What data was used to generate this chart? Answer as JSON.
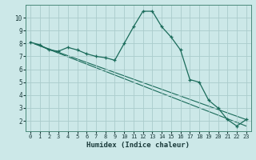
{
  "xlabel": "Humidex (Indice chaleur)",
  "background_color": "#cce8e8",
  "grid_color": "#aacccc",
  "line_color": "#1a6b5a",
  "xlim": [
    -0.5,
    23.5
  ],
  "ylim": [
    1.2,
    11.0
  ],
  "xticks": [
    0,
    1,
    2,
    3,
    4,
    5,
    6,
    7,
    8,
    9,
    10,
    11,
    12,
    13,
    14,
    15,
    16,
    17,
    18,
    19,
    20,
    21,
    22,
    23
  ],
  "yticks": [
    2,
    3,
    4,
    5,
    6,
    7,
    8,
    9,
    10
  ],
  "line1_x": [
    0,
    1,
    2,
    3,
    4,
    5,
    6,
    7,
    8,
    9,
    10,
    11,
    12,
    13,
    14,
    15,
    16,
    17,
    18,
    19,
    20,
    21,
    22,
    23
  ],
  "line1_y": [
    8.1,
    7.9,
    7.5,
    7.4,
    7.7,
    7.5,
    7.2,
    7.0,
    6.9,
    6.7,
    8.0,
    9.3,
    10.5,
    10.5,
    9.3,
    8.5,
    7.5,
    5.2,
    5.0,
    3.6,
    3.0,
    2.1,
    1.6,
    2.1
  ],
  "line2_x": [
    0,
    23
  ],
  "line2_y": [
    8.1,
    2.1
  ],
  "line3_x": [
    0,
    23
  ],
  "line3_y": [
    8.1,
    1.6
  ]
}
